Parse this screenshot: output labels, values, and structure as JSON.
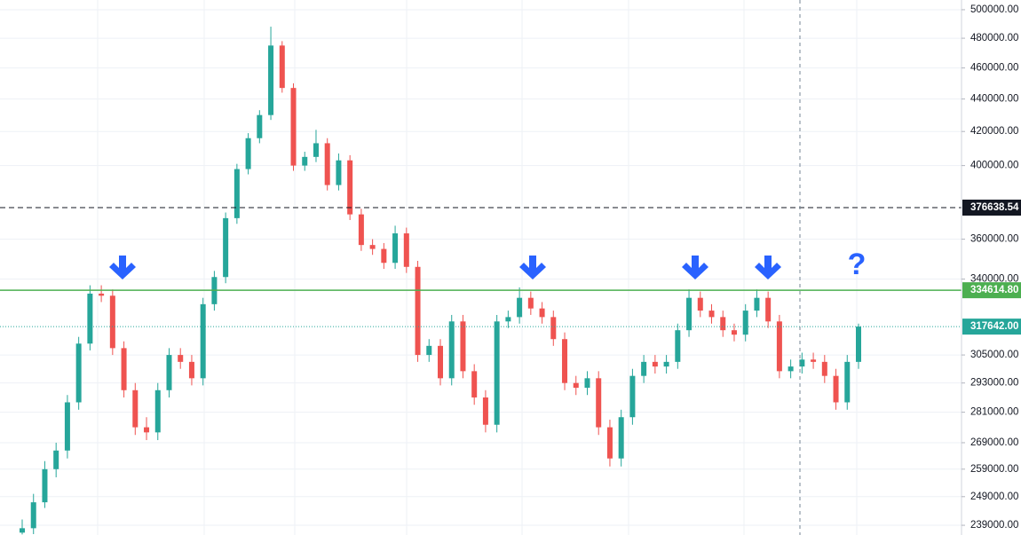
{
  "chart_data": {
    "type": "candlestick",
    "log_scale": true,
    "grid": true,
    "ylim": [
      235700,
      507000
    ],
    "yticks": [
      {
        "value": 500000,
        "label": "500000.00"
      },
      {
        "value": 480000,
        "label": "480000.00"
      },
      {
        "value": 460000,
        "label": "460000.00"
      },
      {
        "value": 440000,
        "label": "440000.00"
      },
      {
        "value": 420000,
        "label": "420000.00"
      },
      {
        "value": 400000,
        "label": "400000.00"
      },
      {
        "value": 360000,
        "label": "360000.00"
      },
      {
        "value": 340000,
        "label": "340000.00"
      },
      {
        "value": 305000,
        "label": "305000.00"
      },
      {
        "value": 293000,
        "label": "293000.00"
      },
      {
        "value": 281000,
        "label": "281000.00"
      },
      {
        "value": 269000,
        "label": "269000.00"
      },
      {
        "value": 259000,
        "label": "259000.00"
      },
      {
        "value": 249000,
        "label": "249000.00"
      },
      {
        "value": 239000,
        "label": "239000.00"
      }
    ],
    "up_color": "#26a69a",
    "down_color": "#ef5350",
    "open": [
      236500,
      238000,
      247000,
      259000,
      266000,
      285000,
      310000,
      333000,
      332000,
      308000,
      290000,
      275000,
      273000,
      290000,
      305000,
      302000,
      295000,
      328000,
      341000,
      371000,
      398000,
      416000,
      430000,
      475000,
      447000,
      400000,
      405000,
      413000,
      389000,
      403000,
      373000,
      357000,
      355000,
      348000,
      363000,
      346000,
      305000,
      309000,
      295000,
      320000,
      298000,
      287000,
      276000,
      320000,
      322000,
      331000,
      326000,
      322000,
      312000,
      293000,
      291000,
      295000,
      275000,
      263000,
      279000,
      296000,
      302000,
      300000,
      302000,
      316000,
      331000,
      325000,
      322000,
      316000,
      314000,
      325000,
      331000,
      320000,
      298000,
      300000,
      303000,
      302000,
      296000,
      285000,
      302000
    ],
    "high": [
      241000,
      250000,
      262000,
      269000,
      288000,
      313000,
      337000,
      337000,
      335000,
      311000,
      293000,
      279000,
      293000,
      308000,
      308000,
      305000,
      331000,
      344000,
      374000,
      401000,
      419000,
      433000,
      488000,
      478000,
      450000,
      408000,
      421000,
      416000,
      407000,
      406000,
      376000,
      360000,
      358000,
      367000,
      366000,
      349000,
      312000,
      312000,
      323000,
      323000,
      301000,
      290000,
      323000,
      325000,
      336000,
      334000,
      329000,
      325000,
      315000,
      296000,
      298000,
      298000,
      278000,
      282000,
      299000,
      305000,
      305000,
      305000,
      319000,
      335000,
      334000,
      328000,
      325000,
      319000,
      328000,
      335000,
      334000,
      323000,
      303000,
      306000,
      306000,
      305000,
      299000,
      305000,
      319000
    ],
    "low": [
      235900,
      236000,
      245000,
      256000,
      263000,
      282000,
      307000,
      329000,
      305000,
      287000,
      272000,
      270000,
      270000,
      287000,
      299000,
      292000,
      292000,
      325000,
      338000,
      368000,
      395000,
      413000,
      427000,
      444000,
      397000,
      397000,
      402000,
      386000,
      386000,
      370000,
      354000,
      352000,
      345000,
      345000,
      343000,
      302000,
      302000,
      292000,
      292000,
      295000,
      284000,
      273000,
      273000,
      317000,
      319000,
      323000,
      319000,
      309000,
      290000,
      288000,
      288000,
      272000,
      260000,
      260000,
      276000,
      293000,
      297000,
      297000,
      299000,
      313000,
      322000,
      319000,
      313000,
      311000,
      311000,
      322000,
      317000,
      295000,
      295000,
      297000,
      299000,
      293000,
      282000,
      282000,
      299000
    ],
    "close": [
      238000,
      247000,
      259000,
      266000,
      285000,
      310000,
      333000,
      332000,
      308000,
      290000,
      275000,
      273000,
      290000,
      305000,
      302000,
      295000,
      328000,
      341000,
      371000,
      398000,
      416000,
      430000,
      475000,
      447000,
      400000,
      405000,
      413000,
      389000,
      403000,
      373000,
      357000,
      355000,
      348000,
      363000,
      346000,
      305000,
      309000,
      295000,
      320000,
      298000,
      287000,
      276000,
      320000,
      322000,
      331000,
      326000,
      322000,
      312000,
      293000,
      291000,
      295000,
      275000,
      263000,
      279000,
      296000,
      302000,
      300000,
      302000,
      316000,
      331000,
      325000,
      322000,
      316000,
      314000,
      325000,
      331000,
      320000,
      298000,
      300000,
      303000,
      302000,
      296000,
      285000,
      302000,
      317642
    ],
    "hlines": [
      {
        "value": 376638.54,
        "label": "376638.54",
        "color": "#131722",
        "style": "dashed"
      },
      {
        "value": 334614.8,
        "label": "334614.80",
        "color": "#4caf50",
        "style": "solid"
      },
      {
        "value": 317642,
        "label": "317642.00",
        "color": "#26a69a",
        "style": "dotted"
      }
    ],
    "annotation": "?"
  }
}
